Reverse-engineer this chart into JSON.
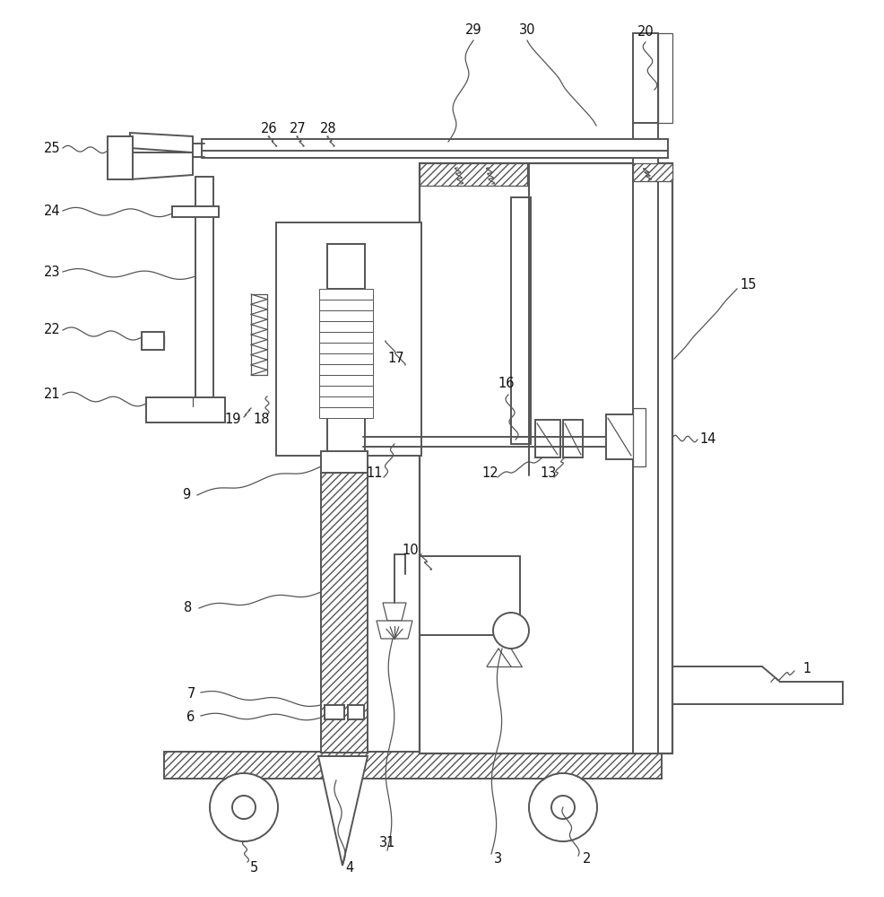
{
  "background_color": "#ffffff",
  "line_color": "#555555",
  "EC": "#555555",
  "lw_main": 1.4,
  "lw_thin": 0.9,
  "label_fs": 10.5
}
